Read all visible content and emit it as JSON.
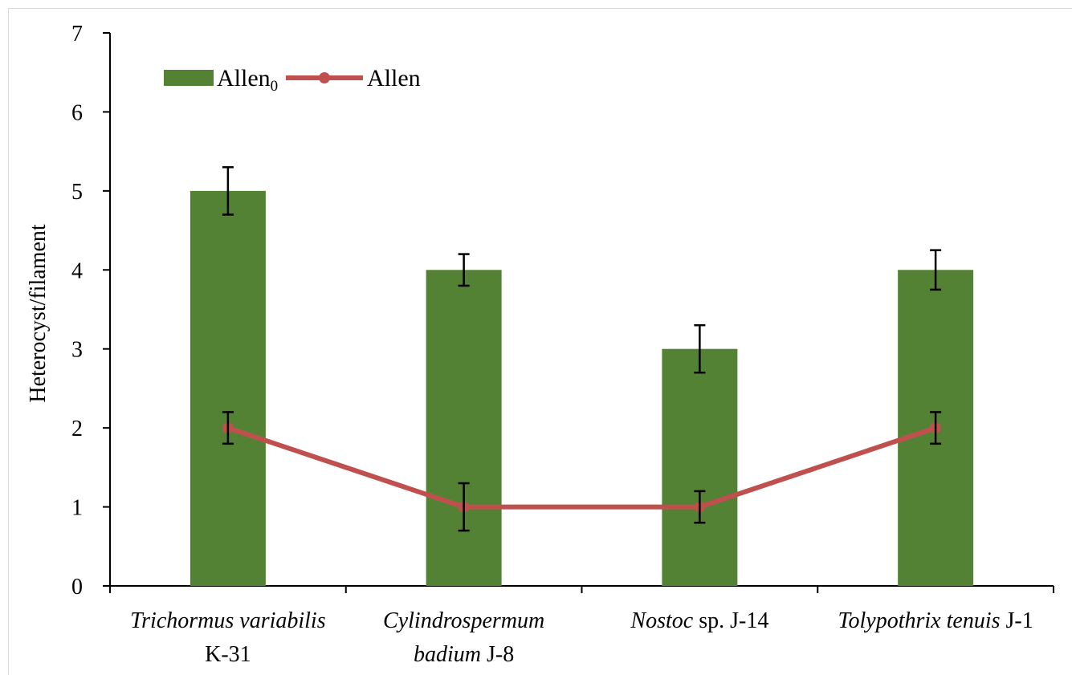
{
  "chart_data": {
    "type": "bar",
    "ylabel": "Heterocyst/filament",
    "xlabel": "",
    "ylim": [
      0,
      7
    ],
    "yticks": [
      "0",
      "1",
      "2",
      "3",
      "4",
      "5",
      "6",
      "7"
    ],
    "grid": false,
    "legend_position": "top-left",
    "categories": [
      [
        {
          "text": "Trichormus variabilis",
          "italic": true
        }
      ],
      [
        {
          "text": "Cylindrospermum",
          "italic": true
        }
      ],
      [
        {
          "text": "Nostoc",
          "italic": true
        },
        {
          "text": " sp. J-14",
          "italic": false
        }
      ],
      [
        {
          "text": "Tolypothrix tenuis",
          "italic": true
        },
        {
          "text": " J-1",
          "italic": false
        }
      ]
    ],
    "categories_line2": [
      [
        {
          "text": "K-31",
          "italic": false
        }
      ],
      [
        {
          "text": "badium",
          "italic": true
        },
        {
          "text": " J-8",
          "italic": false
        }
      ],
      [],
      []
    ],
    "series": [
      {
        "name": "Allen",
        "name_subscript": "0",
        "kind": "bar",
        "color": "#548235",
        "values": [
          5,
          4,
          3,
          4
        ],
        "errors": [
          0.3,
          0.2,
          0.3,
          0.25
        ]
      },
      {
        "name": "Allen",
        "name_subscript": "",
        "kind": "line",
        "color": "#c0504d",
        "values": [
          2,
          1,
          1,
          2
        ],
        "errors": [
          0.2,
          0.3,
          0.2,
          0.2
        ]
      }
    ]
  }
}
